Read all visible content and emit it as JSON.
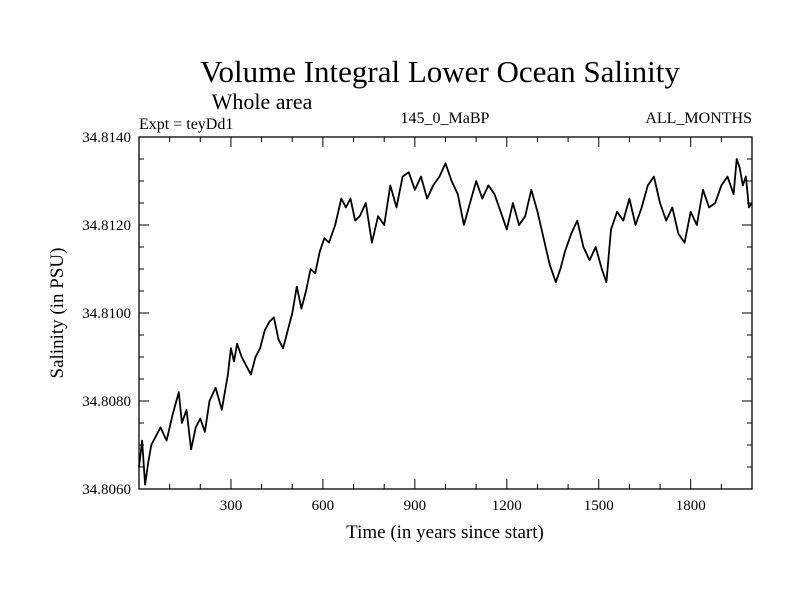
{
  "chart_data": {
    "type": "line",
    "title": "Volume Integral Lower Ocean Salinity",
    "subtitle": "Whole area",
    "experiment_label": "Expt = teyDd1",
    "period_label": "145_0_MaBP",
    "months_label": "ALL_MONTHS",
    "xlabel": "Time (in years since start)",
    "ylabel": "Salinity (in PSU)",
    "xlim": [
      0,
      2000
    ],
    "ylim": [
      34.806,
      34.814
    ],
    "x_ticks": [
      300,
      600,
      900,
      1200,
      1500,
      1800
    ],
    "x_tick_labels": [
      "300",
      "600",
      "900",
      "1200",
      "1500",
      "1800"
    ],
    "y_ticks": [
      34.806,
      34.808,
      34.81,
      34.812,
      34.814
    ],
    "y_tick_labels": [
      "34.8060",
      "34.8080",
      "34.8100",
      "34.8120",
      "34.8140"
    ],
    "grid": false,
    "series": [
      {
        "name": "Salinity",
        "x": [
          0,
          10,
          20,
          30,
          40,
          55,
          70,
          90,
          110,
          130,
          140,
          155,
          170,
          185,
          200,
          215,
          230,
          250,
          270,
          290,
          300,
          310,
          320,
          335,
          350,
          365,
          380,
          395,
          410,
          425,
          440,
          455,
          470,
          485,
          500,
          515,
          530,
          545,
          560,
          575,
          590,
          605,
          620,
          640,
          660,
          675,
          690,
          705,
          720,
          740,
          760,
          780,
          800,
          820,
          840,
          860,
          880,
          900,
          920,
          940,
          960,
          980,
          1000,
          1020,
          1040,
          1060,
          1080,
          1100,
          1120,
          1140,
          1160,
          1180,
          1200,
          1220,
          1240,
          1260,
          1280,
          1300,
          1320,
          1340,
          1360,
          1375,
          1390,
          1410,
          1430,
          1450,
          1470,
          1490,
          1510,
          1525,
          1540,
          1560,
          1580,
          1600,
          1620,
          1640,
          1660,
          1680,
          1700,
          1720,
          1740,
          1760,
          1780,
          1800,
          1820,
          1840,
          1860,
          1880,
          1900,
          1920,
          1940,
          1950,
          1960,
          1970,
          1980,
          1990,
          2000
        ],
        "values": [
          34.8065,
          34.8071,
          34.8061,
          34.8066,
          34.807,
          34.8072,
          34.8074,
          34.8071,
          34.8077,
          34.8082,
          34.8075,
          34.8078,
          34.8069,
          34.8074,
          34.8076,
          34.8073,
          34.808,
          34.8083,
          34.8078,
          34.8086,
          34.8092,
          34.8089,
          34.8093,
          34.809,
          34.8088,
          34.8086,
          34.809,
          34.8092,
          34.8096,
          34.8098,
          34.8099,
          34.8094,
          34.8092,
          34.8096,
          34.81,
          34.8106,
          34.8101,
          34.8105,
          34.811,
          34.8109,
          34.8114,
          34.8117,
          34.8116,
          34.812,
          34.8126,
          34.8124,
          34.8126,
          34.8121,
          34.8122,
          34.8125,
          34.8116,
          34.8122,
          34.812,
          34.8129,
          34.8124,
          34.8131,
          34.8132,
          34.8128,
          34.8131,
          34.8126,
          34.8129,
          34.8131,
          34.8134,
          34.813,
          34.8127,
          34.812,
          34.8125,
          34.813,
          34.8126,
          34.8129,
          34.8127,
          34.8123,
          34.8119,
          34.8125,
          34.812,
          34.8122,
          34.8128,
          34.8123,
          34.8117,
          34.8111,
          34.8107,
          34.811,
          34.8114,
          34.8118,
          34.8121,
          34.8115,
          34.8112,
          34.8115,
          34.811,
          34.8107,
          34.8119,
          34.8123,
          34.8121,
          34.8126,
          34.812,
          34.8124,
          34.8129,
          34.8131,
          34.8125,
          34.8121,
          34.8124,
          34.8118,
          34.8116,
          34.8123,
          34.812,
          34.8128,
          34.8124,
          34.8125,
          34.8129,
          34.8131,
          34.8127,
          34.8135,
          34.8133,
          34.8129,
          34.8131,
          34.8124,
          34.8125
        ]
      }
    ]
  }
}
